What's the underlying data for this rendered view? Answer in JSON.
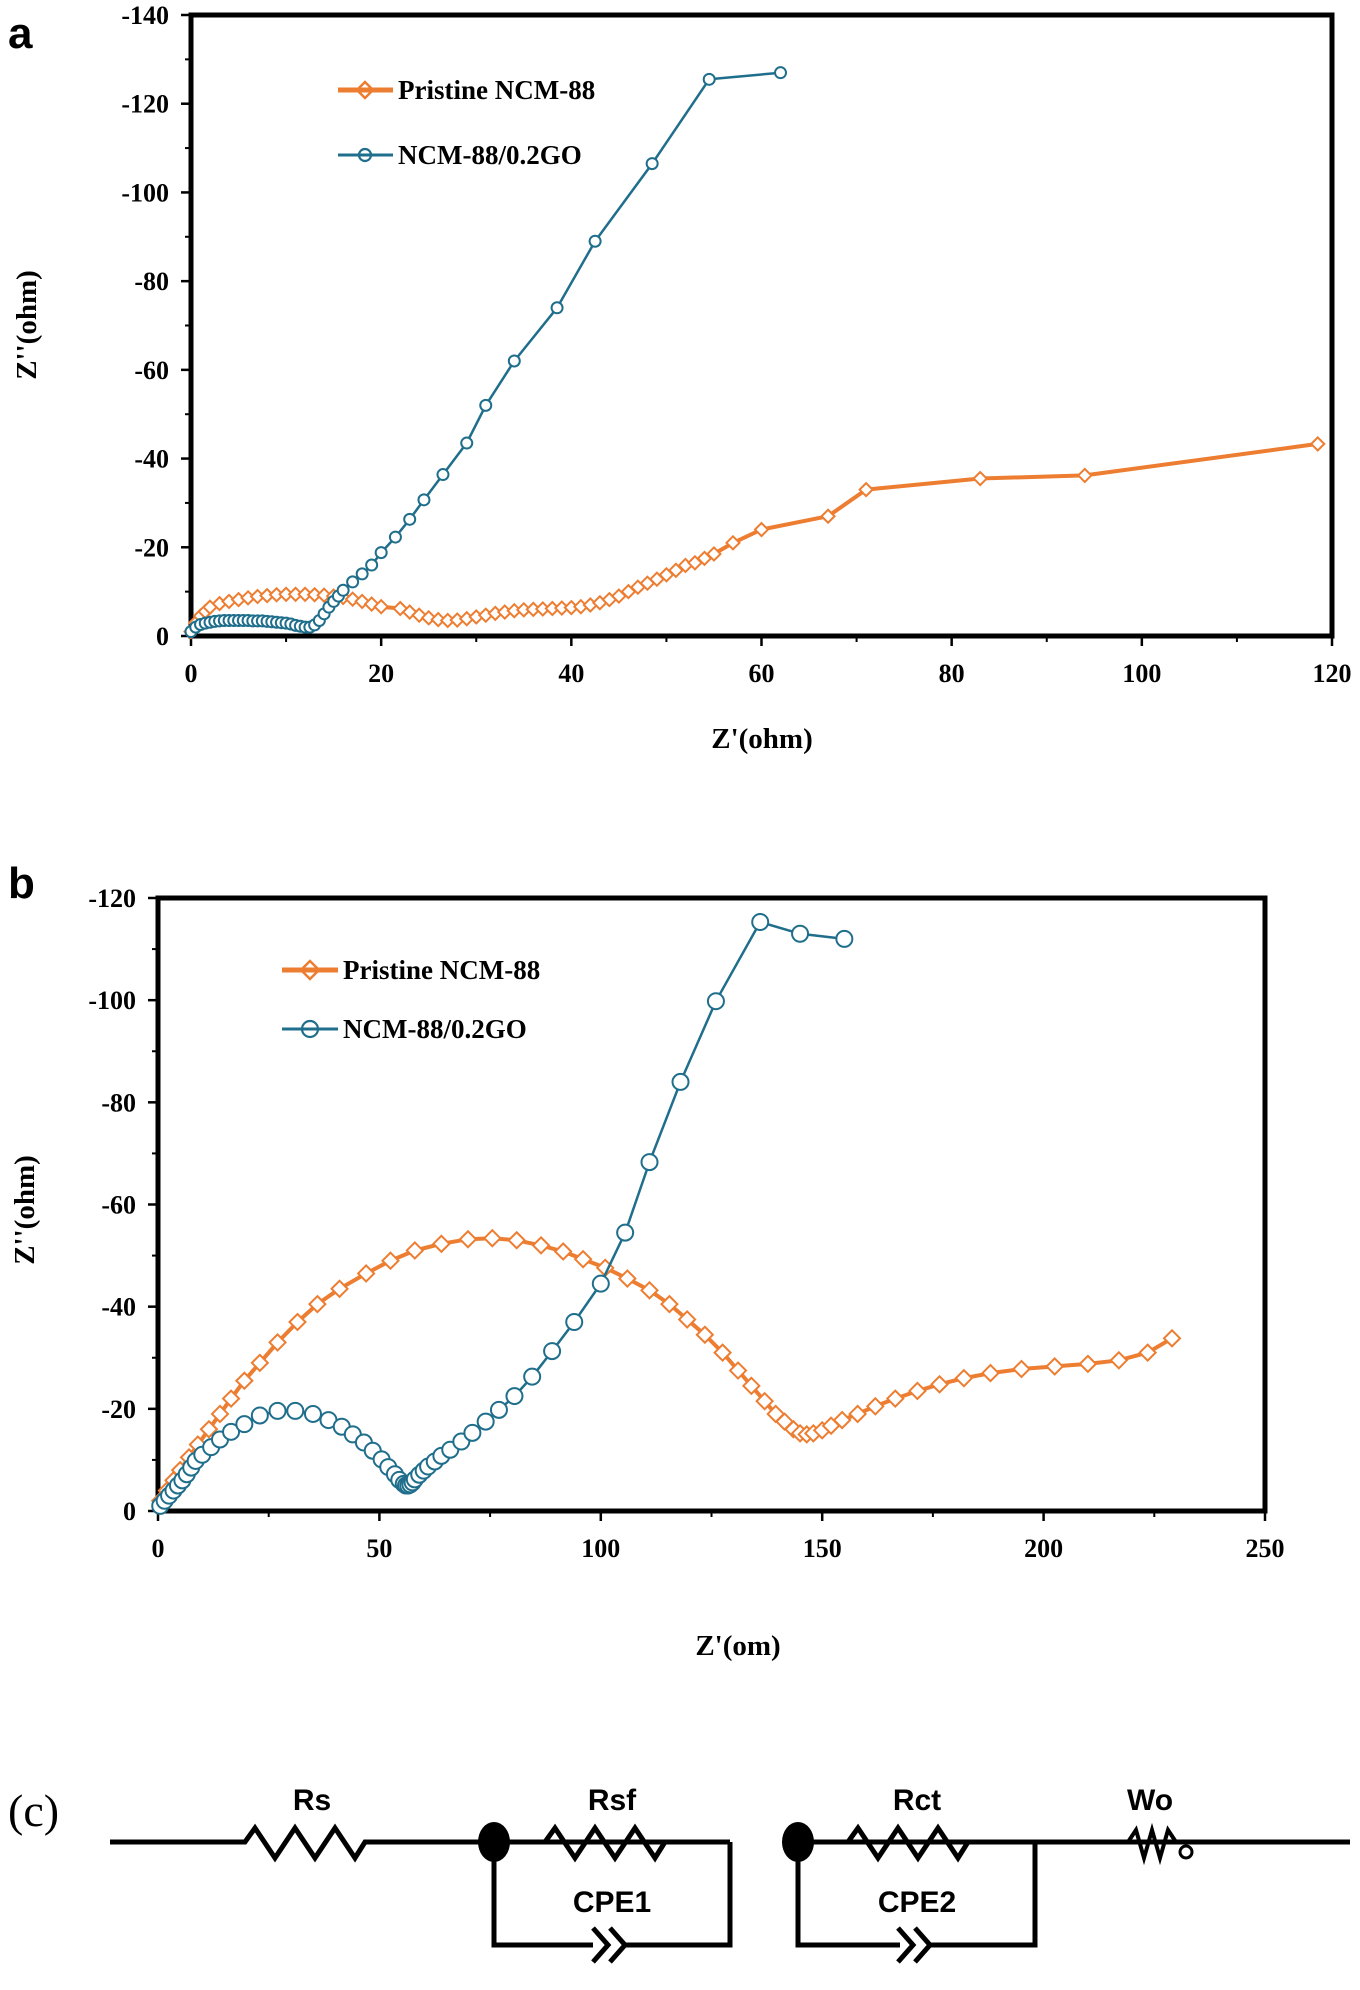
{
  "colors": {
    "pristine": "#ED7D31",
    "go": "#1F6E8C",
    "axis": "#000000"
  },
  "chart_data": [
    {
      "panel_label": "a",
      "type": "scatter",
      "xlabel": "Z'(ohm)",
      "ylabel": "Z''(ohm)",
      "xlim": [
        0,
        120
      ],
      "ylim": [
        0,
        -140
      ],
      "xticks": [
        0,
        20,
        40,
        60,
        80,
        100,
        120
      ],
      "yticks": [
        0,
        -20,
        -40,
        -60,
        -80,
        -100,
        -120,
        -140
      ],
      "x_tick_labels": [
        "0",
        "20",
        "40",
        "60",
        "80",
        "100",
        "120"
      ],
      "y_tick_labels": [
        "0",
        "-20",
        "-40",
        "-60",
        "-80",
        "-100",
        "-120",
        "-140"
      ],
      "legend_position": "top-left",
      "series": [
        {
          "name": "Pristine NCM-88",
          "marker": "diamond",
          "color": "#ED7D31",
          "x": [
            0,
            0.5,
            1,
            1.5,
            2,
            3,
            4,
            5,
            6,
            7,
            8,
            9,
            10,
            11,
            12,
            13,
            14,
            15,
            16,
            17,
            18,
            19,
            20,
            22,
            23,
            24,
            25,
            26,
            27,
            28,
            29,
            30,
            31,
            32,
            33,
            34,
            35,
            36,
            37,
            38,
            39,
            40,
            41,
            42,
            43,
            44,
            45,
            46,
            47,
            48,
            49,
            50,
            51,
            52,
            53,
            54,
            55,
            57,
            60,
            67,
            71,
            83,
            94,
            118.5
          ],
          "y": [
            -1,
            -3,
            -4.5,
            -5.5,
            -6.5,
            -7.3,
            -7.8,
            -8.2,
            -8.6,
            -8.9,
            -9.1,
            -9.3,
            -9.4,
            -9.4,
            -9.4,
            -9.3,
            -9.2,
            -9.0,
            -8.7,
            -8.3,
            -7.8,
            -7.2,
            -6.6,
            -6.2,
            -5.4,
            -4.7,
            -4.1,
            -3.7,
            -3.5,
            -3.6,
            -3.9,
            -4.3,
            -4.7,
            -5.1,
            -5.4,
            -5.7,
            -5.9,
            -6.0,
            -6.1,
            -6.2,
            -6.3,
            -6.4,
            -6.6,
            -7.0,
            -7.5,
            -8.2,
            -9.0,
            -10.0,
            -11.0,
            -11.9,
            -12.8,
            -13.8,
            -14.8,
            -15.9,
            -16.5,
            -17.5,
            -18.5,
            -21,
            -24,
            -27,
            -33,
            -35.5,
            -36.2,
            -43.3
          ]
        },
        {
          "name": "NCM-88/0.2GO",
          "marker": "circle",
          "color": "#1F6E8C",
          "x": [
            0,
            0.5,
            1,
            1.5,
            2,
            2.5,
            3,
            3.5,
            4,
            4.5,
            5,
            5.5,
            6,
            6.5,
            7,
            7.5,
            8,
            8.5,
            9,
            9.5,
            10,
            10.5,
            11,
            11.5,
            12,
            12.5,
            13,
            13.5,
            14,
            14.5,
            15,
            15.5,
            16,
            17,
            18,
            19,
            20,
            21.5,
            23,
            24.5,
            26.5,
            29,
            31,
            34,
            38.5,
            42.5,
            48.5,
            54.5,
            62
          ],
          "y": [
            -1,
            -2.0,
            -2.6,
            -2.9,
            -3.1,
            -3.3,
            -3.4,
            -3.5,
            -3.5,
            -3.5,
            -3.5,
            -3.5,
            -3.5,
            -3.4,
            -3.4,
            -3.4,
            -3.3,
            -3.2,
            -3.1,
            -3.0,
            -2.9,
            -2.7,
            -2.4,
            -2.2,
            -2.0,
            -2.0,
            -2.5,
            -3.5,
            -5,
            -6.5,
            -7.8,
            -9,
            -10.3,
            -12.2,
            -14,
            -16,
            -18.8,
            -22.3,
            -26.3,
            -30.7,
            -36.4,
            -43.5,
            -52,
            -62,
            -74,
            -89,
            -106.5,
            -125.5,
            -127
          ]
        }
      ]
    },
    {
      "panel_label": "b",
      "type": "scatter",
      "xlabel": "Z'(om)",
      "ylabel": "Z''(ohm)",
      "xlim": [
        0,
        250
      ],
      "ylim": [
        0,
        -120
      ],
      "xticks": [
        0,
        50,
        100,
        150,
        200,
        250
      ],
      "yticks": [
        0,
        -20,
        -40,
        -60,
        -80,
        -100,
        -120
      ],
      "x_tick_labels": [
        "0",
        "50",
        "100",
        "150",
        "200",
        "250"
      ],
      "y_tick_labels": [
        "0",
        "-20",
        "-40",
        "-60",
        "-80",
        "-100",
        "-120"
      ],
      "legend_position": "top-left",
      "series": [
        {
          "name": "Pristine NCM-88",
          "marker": "diamond",
          "color": "#ED7D31",
          "x": [
            0.5,
            2,
            3.5,
            5,
            7,
            9,
            11.5,
            14,
            16.5,
            19.5,
            23,
            27,
            31.5,
            36,
            41,
            47,
            52.5,
            58,
            64,
            70,
            75.5,
            81,
            86.5,
            91.5,
            96,
            101,
            106,
            111,
            115.5,
            119.5,
            123.5,
            127.5,
            131,
            134,
            137,
            139.5,
            141.5,
            143.5,
            145,
            146.5,
            148,
            150,
            152,
            154.5,
            158,
            162,
            166.5,
            171.5,
            176.5,
            182,
            188,
            195,
            202.5,
            210,
            217,
            223.5,
            229
          ],
          "y": [
            -2,
            -4,
            -6,
            -8,
            -10.5,
            -13,
            -16,
            -19,
            -22,
            -25.5,
            -29,
            -33,
            -37,
            -40.5,
            -43.5,
            -46.5,
            -49,
            -51,
            -52.3,
            -53.2,
            -53.4,
            -53.0,
            -52.0,
            -50.8,
            -49.3,
            -47.6,
            -45.5,
            -43.2,
            -40.5,
            -37.5,
            -34.5,
            -31,
            -27.5,
            -24.5,
            -21.5,
            -19,
            -17.5,
            -16,
            -15.2,
            -15,
            -15.2,
            -15.8,
            -16.7,
            -17.8,
            -19,
            -20.5,
            -22,
            -23.5,
            -24.8,
            -26,
            -27,
            -27.8,
            -28.3,
            -28.8,
            -29.5,
            -31,
            -33.8
          ]
        },
        {
          "name": "NCM-88/0.2GO",
          "marker": "circle",
          "color": "#1F6E8C",
          "x": [
            0.5,
            1.5,
            2.5,
            3.5,
            4.5,
            5.5,
            6.5,
            7.5,
            8.5,
            10,
            12,
            14,
            16.5,
            19.5,
            23,
            27,
            31,
            35,
            38.5,
            41.5,
            44,
            46.5,
            48.5,
            50.5,
            52,
            53.5,
            54.5,
            55.5,
            56,
            56.5,
            57,
            57.5,
            58,
            59,
            60,
            61,
            62.5,
            64,
            66,
            68.5,
            71,
            74,
            77,
            80.5,
            84.5,
            89,
            94,
            100,
            105.5,
            111,
            118,
            126,
            136,
            145,
            155
          ],
          "y": [
            -1,
            -2,
            -3,
            -4,
            -5,
            -6,
            -7.2,
            -8.5,
            -9.8,
            -11,
            -12.5,
            -14,
            -15.5,
            -17,
            -18.7,
            -19.6,
            -19.6,
            -19,
            -17.8,
            -16.5,
            -15,
            -13.4,
            -11.8,
            -10.1,
            -8.6,
            -7.2,
            -6.1,
            -5.3,
            -5,
            -5,
            -5.2,
            -5.6,
            -6.2,
            -7.1,
            -7.9,
            -8.7,
            -9.7,
            -10.8,
            -12,
            -13.6,
            -15.3,
            -17.5,
            -19.8,
            -22.5,
            -26.3,
            -31.3,
            -37,
            -44.5,
            -54.5,
            -68.3,
            -84,
            -99.8,
            -115.3,
            -113,
            -112
          ]
        }
      ]
    }
  ],
  "circuit": {
    "panel_label": "(c)",
    "components": [
      {
        "name": "Rs",
        "type": "resistor"
      },
      {
        "name": "Rsf",
        "type": "resistor"
      },
      {
        "name": "CPE1",
        "type": "cpe"
      },
      {
        "name": "Rct",
        "type": "resistor"
      },
      {
        "name": "CPE2",
        "type": "cpe"
      },
      {
        "name": "Wo",
        "type": "warburg"
      }
    ]
  }
}
